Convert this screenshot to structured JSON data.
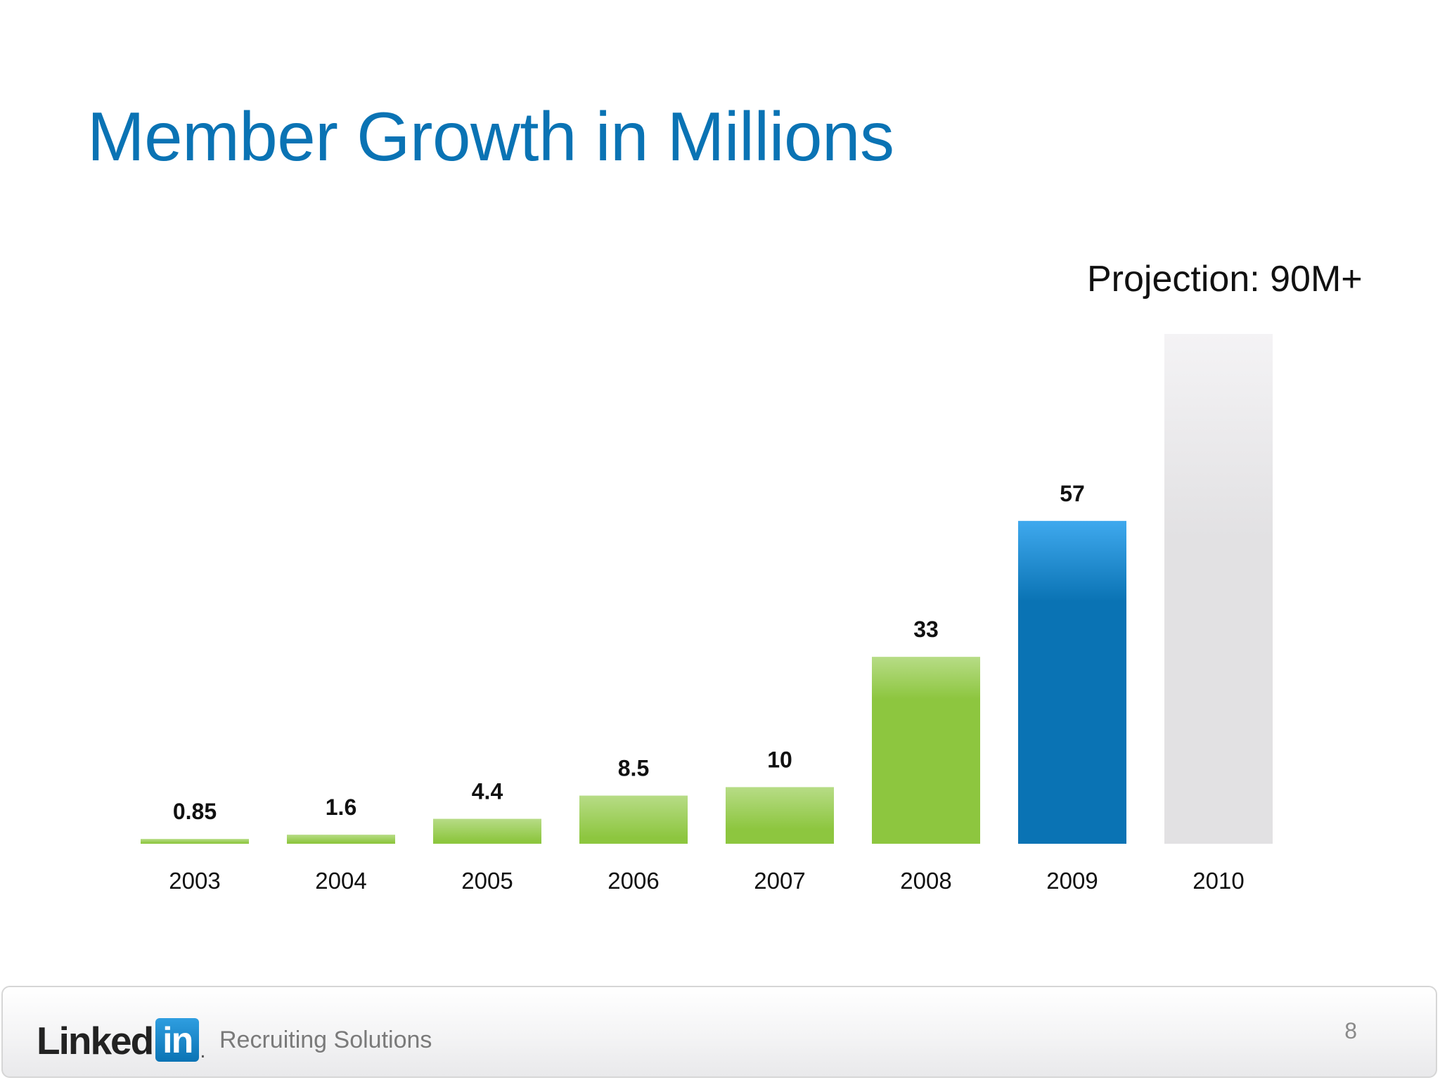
{
  "slide": {
    "title": "Member Growth in Millions",
    "projection_note": "Projection: 90M+",
    "page_number": "8"
  },
  "footer": {
    "logo_text": "Linked",
    "logo_box_text": "in",
    "logo_dot": ".",
    "tagline": "Recruiting Solutions"
  },
  "colors": {
    "title": "#0a73b4",
    "actual_bar": "#8dc63f",
    "actual_bar_top": "#b7dc86",
    "highlight_bar": "#0a73b4",
    "highlight_bar_top": "#3fa9ee",
    "projection_bar": "#e2e1e3",
    "projection_bar_top": "#f4f3f5"
  },
  "chart_data": {
    "type": "bar",
    "title": "Member Growth in Millions",
    "xlabel": "",
    "ylabel": "",
    "categories": [
      "2003",
      "2004",
      "2005",
      "2006",
      "2007",
      "2008",
      "2009",
      "2010"
    ],
    "values": [
      0.85,
      1.6,
      4.4,
      8.5,
      10,
      33,
      57,
      90
    ],
    "value_labels": [
      "0.85",
      "1.6",
      "4.4",
      "8.5",
      "10",
      "33",
      "57",
      ""
    ],
    "bar_styles": [
      "actual",
      "actual",
      "actual",
      "actual",
      "actual",
      "actual",
      "highlight",
      "projection"
    ],
    "annotation": "Projection: 90M+",
    "grid": false,
    "legend": "none"
  }
}
